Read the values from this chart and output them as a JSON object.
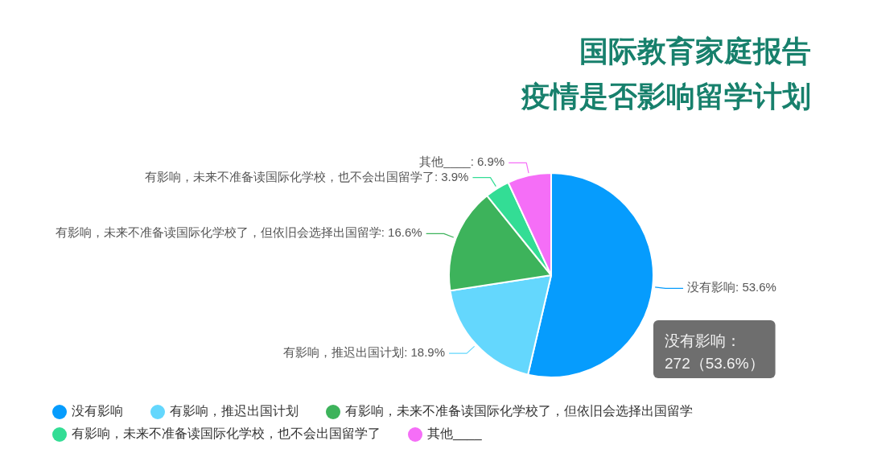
{
  "chart_data": {
    "type": "pie",
    "title": "国际教育家庭报告",
    "subtitle": "疫情是否影响留学计划",
    "categories": [
      "没有影响",
      "有影响，推迟出国计划",
      "有影响，未来不准备读国际化学校了，但依旧会选择出国留学",
      "有影响，未来不准备读国际化学校，也不会出国留学了",
      "其他____"
    ],
    "values": [
      53.6,
      18.9,
      16.6,
      3.9,
      6.9
    ],
    "colors": [
      "#069cfd",
      "#64d7fd",
      "#3db35b",
      "#33dd95",
      "#f56ef7"
    ],
    "value_labels": [
      "没有影响: 53.6%",
      "有影响，推迟出国计划: 18.9%",
      "有影响，未来不准备读国际化学校了，但依旧会选择出国留学: 16.6%",
      "有影响，未来不准备读国际化学校，也不会出国留学了: 3.9%",
      "其他____: 6.9%"
    ],
    "annotations": [
      "没有影响：\n272（53.6%）"
    ],
    "legend": "bottom"
  }
}
